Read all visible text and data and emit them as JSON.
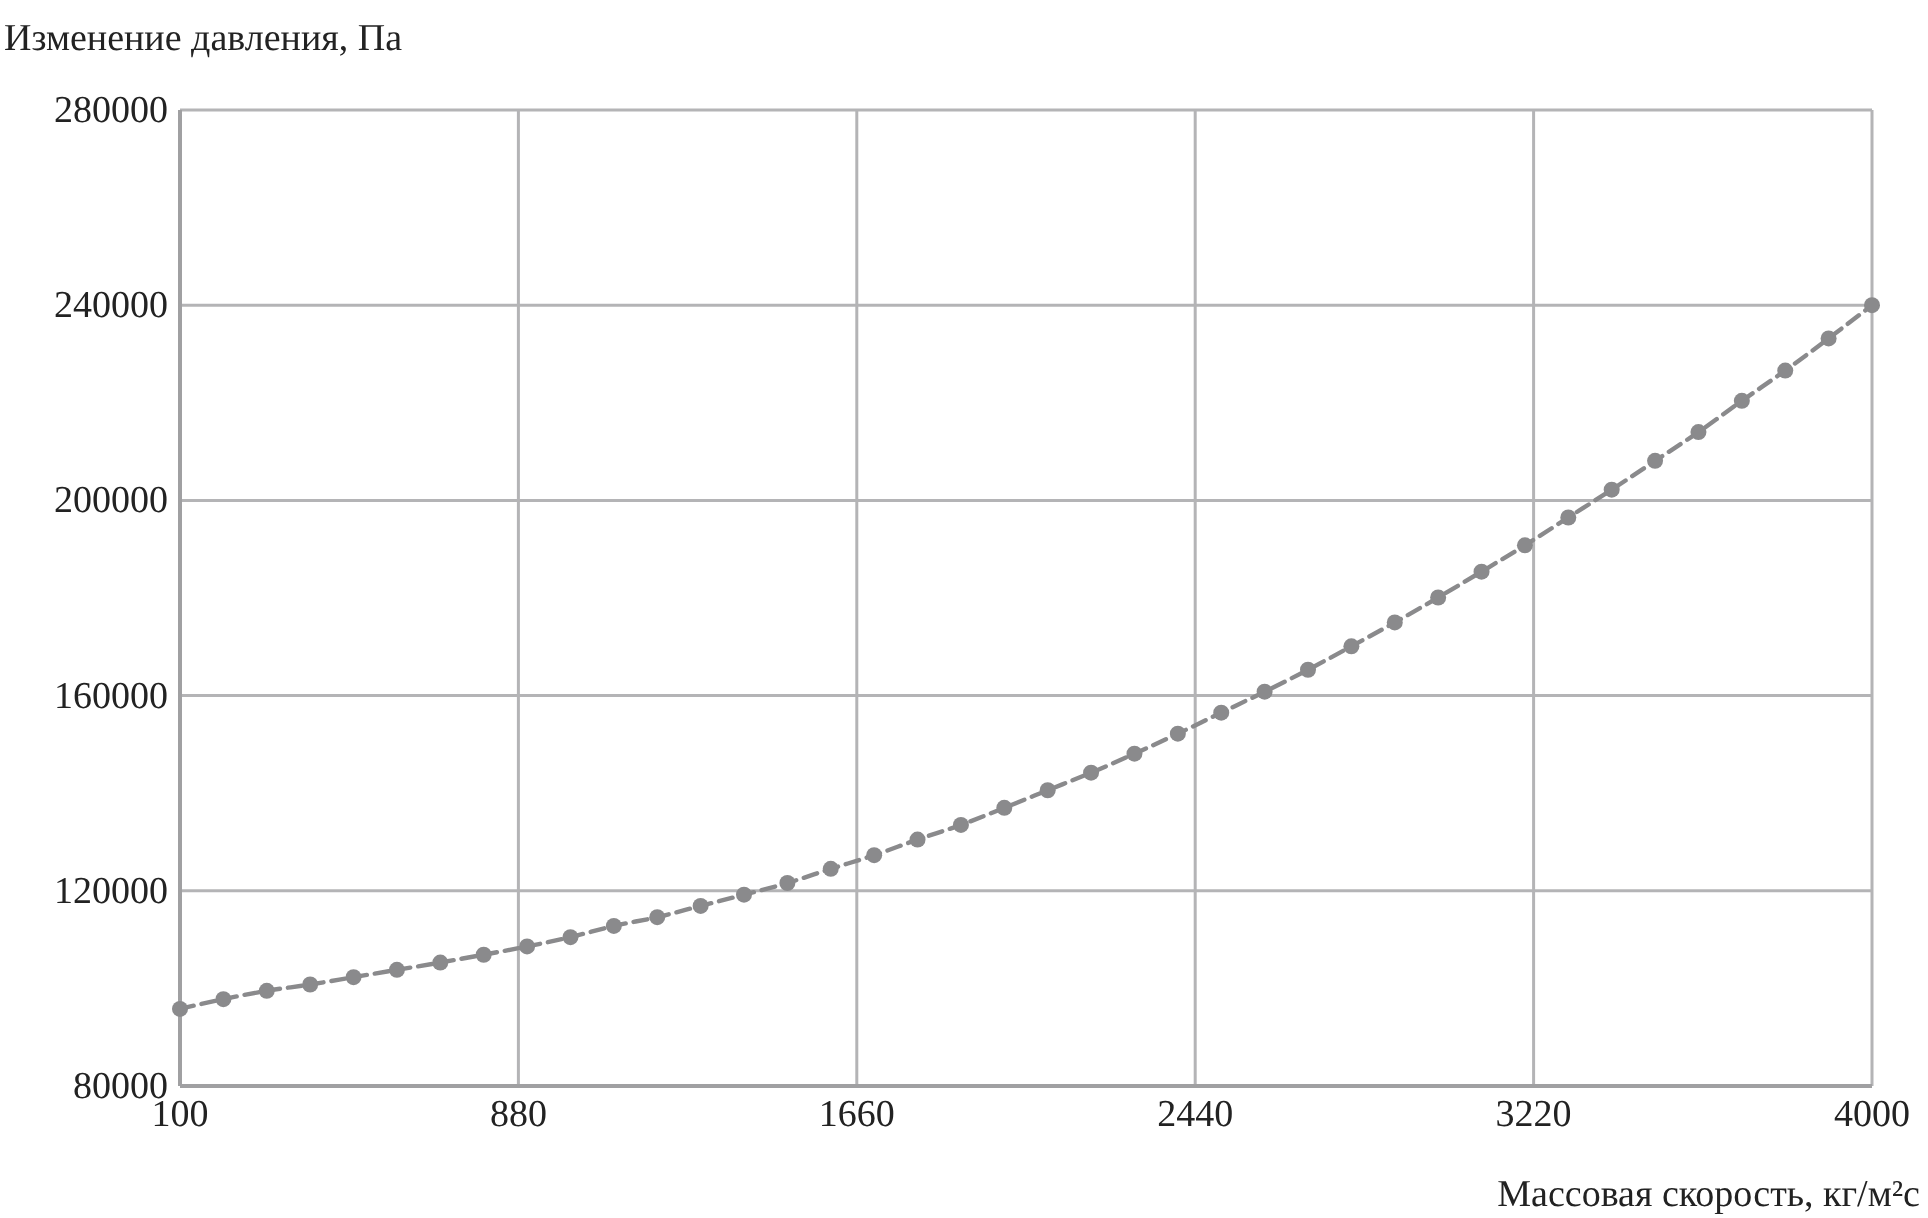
{
  "chart_data": {
    "type": "line",
    "xlabel": "Массовая скорость, кг/м²с",
    "ylabel": "Изменение давления, Па",
    "x": [
      100,
      200,
      300,
      400,
      500,
      600,
      700,
      800,
      900,
      1000,
      1100,
      1200,
      1300,
      1400,
      1500,
      1600,
      1700,
      1800,
      1900,
      2000,
      2100,
      2200,
      2300,
      2400,
      2500,
      2600,
      2700,
      2800,
      2900,
      3000,
      3100,
      3200,
      3300,
      3400,
      3500,
      3600,
      3700,
      3800,
      3900,
      4000
    ],
    "series": [
      {
        "color": "#8a8a8c",
        "values": [
          95800,
          97800,
          99500,
          100800,
          102300,
          103800,
          105300,
          106900,
          108600,
          110500,
          112800,
          114600,
          116900,
          119200,
          121600,
          124500,
          127300,
          130500,
          133500,
          137000,
          140600,
          144200,
          148100,
          152200,
          156500,
          160800,
          165300,
          170100,
          175000,
          180100,
          185400,
          190800,
          196500,
          202200,
          208100,
          214000,
          220400,
          226600,
          233200,
          240000
        ]
      }
    ],
    "xlim": [
      100,
      4000
    ],
    "xticks": [
      100,
      880,
      1660,
      2440,
      3220,
      4000
    ],
    "ylim": [
      80000,
      280000
    ],
    "yticks": [
      80000,
      120000,
      160000,
      200000,
      240000,
      280000
    ],
    "grid": true,
    "marker": "circle",
    "line_style": "dashed"
  }
}
